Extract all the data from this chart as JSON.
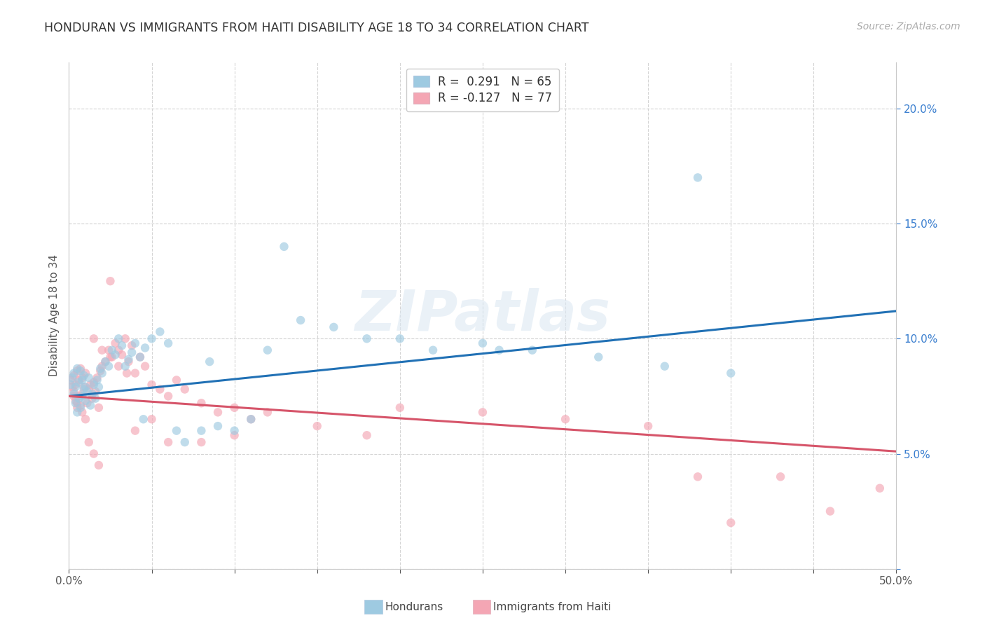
{
  "title": "HONDURAN VS IMMIGRANTS FROM HAITI DISABILITY AGE 18 TO 34 CORRELATION CHART",
  "source": "Source: ZipAtlas.com",
  "ylabel": "Disability Age 18 to 34",
  "xlim": [
    0.0,
    0.5
  ],
  "ylim": [
    0.0,
    0.22
  ],
  "blue_color": "#9ecae1",
  "pink_color": "#f4a6b4",
  "blue_line_color": "#2171b5",
  "pink_line_color": "#d6556a",
  "grid_color": "#d0d0d0",
  "blue_R": 0.291,
  "blue_N": 65,
  "pink_R": -0.127,
  "pink_N": 77,
  "title_fontsize": 12.5,
  "ylabel_fontsize": 11,
  "tick_fontsize": 11,
  "legend_fontsize": 12,
  "source_fontsize": 10,
  "marker_size": 80,
  "marker_alpha": 0.65,
  "line_width": 2.2,
  "blue_line_x0": 0.0,
  "blue_line_y0": 0.075,
  "blue_line_x1": 0.5,
  "blue_line_y1": 0.112,
  "pink_line_x0": 0.0,
  "pink_line_y0": 0.075,
  "pink_line_x1": 0.5,
  "pink_line_y1": 0.051,
  "blue_x": [
    0.001,
    0.002,
    0.003,
    0.003,
    0.004,
    0.004,
    0.005,
    0.005,
    0.006,
    0.006,
    0.007,
    0.007,
    0.008,
    0.008,
    0.009,
    0.009,
    0.01,
    0.01,
    0.011,
    0.012,
    0.013,
    0.014,
    0.015,
    0.016,
    0.017,
    0.018,
    0.019,
    0.02,
    0.022,
    0.024,
    0.026,
    0.028,
    0.03,
    0.032,
    0.034,
    0.036,
    0.038,
    0.04,
    0.043,
    0.046,
    0.05,
    0.055,
    0.06,
    0.065,
    0.07,
    0.08,
    0.09,
    0.1,
    0.11,
    0.12,
    0.14,
    0.16,
    0.18,
    0.2,
    0.22,
    0.25,
    0.28,
    0.32,
    0.36,
    0.4,
    0.13,
    0.26,
    0.085,
    0.045,
    0.38
  ],
  "blue_y": [
    0.08,
    0.083,
    0.076,
    0.085,
    0.072,
    0.079,
    0.068,
    0.087,
    0.074,
    0.081,
    0.07,
    0.086,
    0.075,
    0.082,
    0.078,
    0.084,
    0.073,
    0.079,
    0.077,
    0.083,
    0.071,
    0.076,
    0.08,
    0.074,
    0.082,
    0.079,
    0.087,
    0.085,
    0.09,
    0.088,
    0.095,
    0.093,
    0.1,
    0.097,
    0.088,
    0.091,
    0.094,
    0.098,
    0.092,
    0.096,
    0.1,
    0.103,
    0.098,
    0.06,
    0.055,
    0.06,
    0.062,
    0.06,
    0.065,
    0.095,
    0.108,
    0.105,
    0.1,
    0.1,
    0.095,
    0.098,
    0.095,
    0.092,
    0.088,
    0.085,
    0.14,
    0.095,
    0.09,
    0.065,
    0.17
  ],
  "pink_x": [
    0.001,
    0.002,
    0.003,
    0.003,
    0.004,
    0.004,
    0.005,
    0.005,
    0.006,
    0.006,
    0.007,
    0.007,
    0.008,
    0.008,
    0.009,
    0.01,
    0.011,
    0.012,
    0.013,
    0.014,
    0.015,
    0.016,
    0.017,
    0.018,
    0.019,
    0.02,
    0.022,
    0.024,
    0.026,
    0.028,
    0.03,
    0.032,
    0.034,
    0.036,
    0.038,
    0.04,
    0.043,
    0.046,
    0.05,
    0.055,
    0.06,
    0.065,
    0.07,
    0.08,
    0.09,
    0.1,
    0.11,
    0.12,
    0.15,
    0.18,
    0.015,
    0.02,
    0.025,
    0.03,
    0.035,
    0.04,
    0.05,
    0.06,
    0.08,
    0.1,
    0.2,
    0.25,
    0.3,
    0.35,
    0.4,
    0.43,
    0.46,
    0.49,
    0.003,
    0.005,
    0.008,
    0.01,
    0.012,
    0.015,
    0.018,
    0.025,
    0.38
  ],
  "pink_y": [
    0.082,
    0.079,
    0.077,
    0.084,
    0.073,
    0.08,
    0.07,
    0.086,
    0.075,
    0.082,
    0.071,
    0.087,
    0.076,
    0.083,
    0.079,
    0.085,
    0.072,
    0.078,
    0.08,
    0.074,
    0.081,
    0.077,
    0.083,
    0.07,
    0.086,
    0.088,
    0.09,
    0.095,
    0.092,
    0.098,
    0.095,
    0.093,
    0.1,
    0.09,
    0.097,
    0.085,
    0.092,
    0.088,
    0.08,
    0.078,
    0.075,
    0.082,
    0.078,
    0.072,
    0.068,
    0.07,
    0.065,
    0.068,
    0.062,
    0.058,
    0.1,
    0.095,
    0.092,
    0.088,
    0.085,
    0.06,
    0.065,
    0.055,
    0.055,
    0.058,
    0.07,
    0.068,
    0.065,
    0.062,
    0.02,
    0.04,
    0.025,
    0.035,
    0.075,
    0.072,
    0.068,
    0.065,
    0.055,
    0.05,
    0.045,
    0.125,
    0.04
  ]
}
